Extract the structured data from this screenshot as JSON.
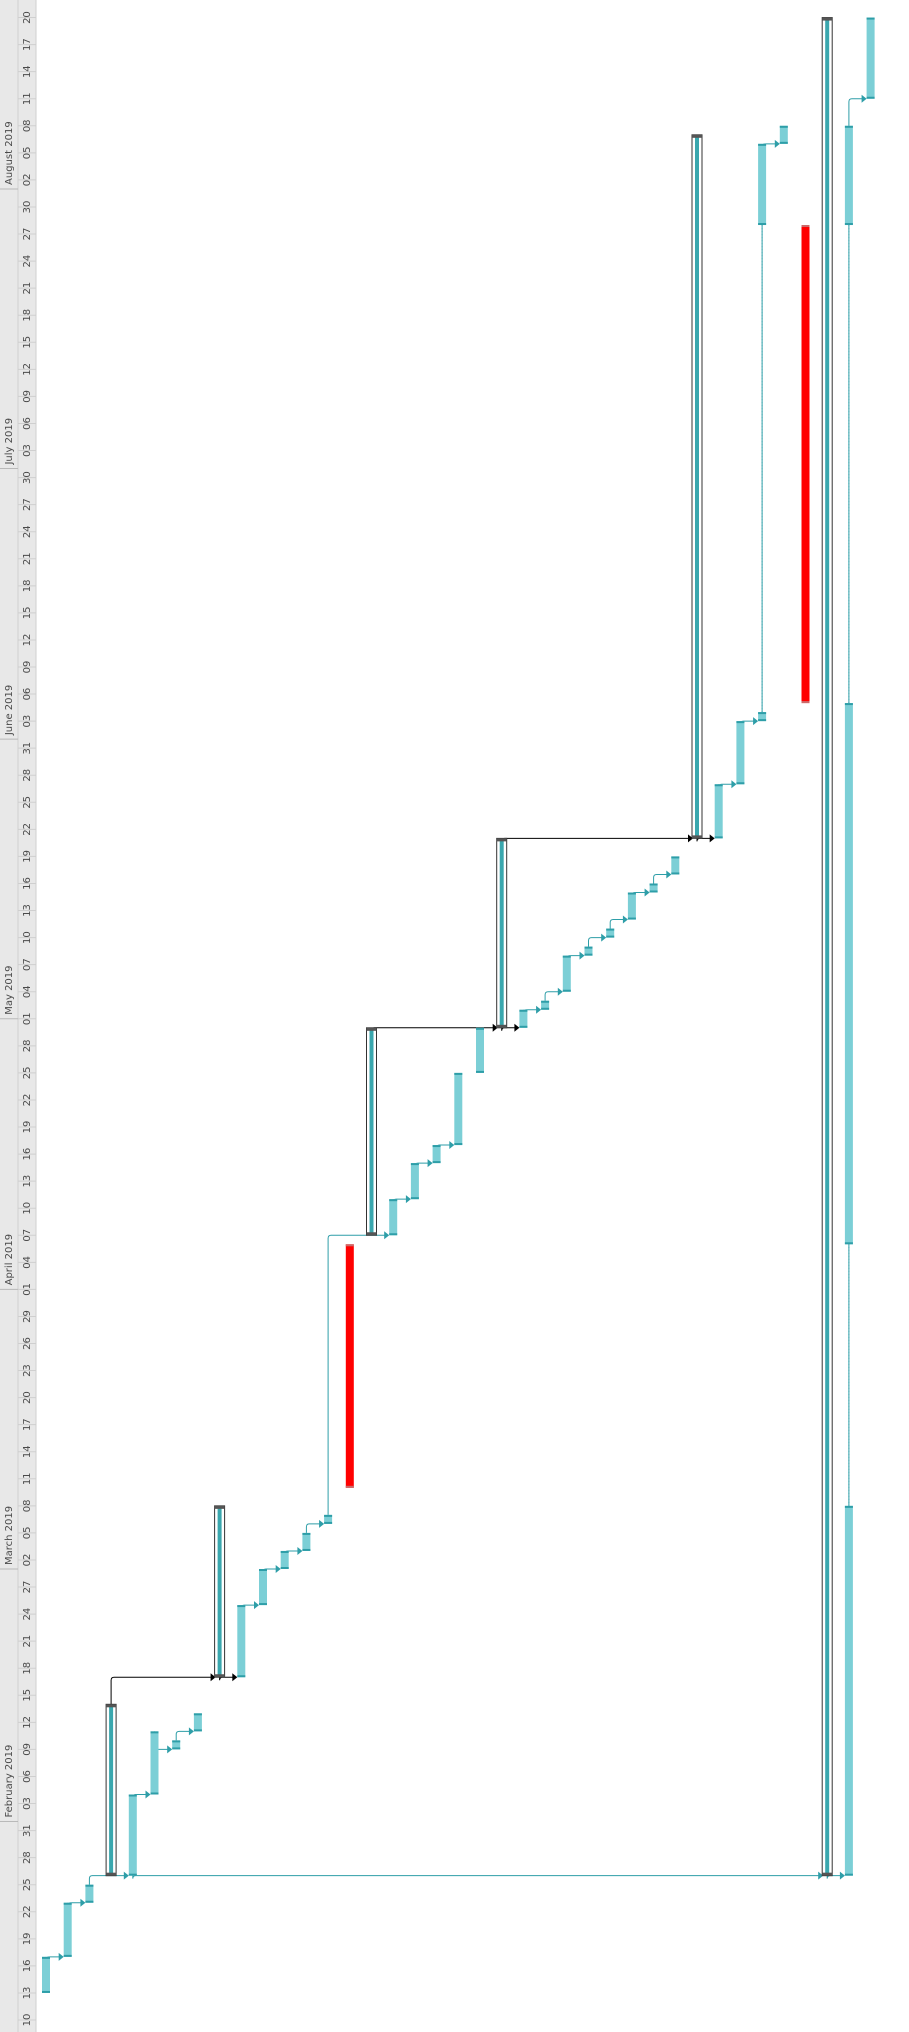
{
  "chart_data": {
    "type": "gantt",
    "orientation": "rotated-90",
    "date_axis": {
      "start": "2019-01-10",
      "end": "2019-08-21",
      "tick_labels": [
        {
          "date": "2019-01-10",
          "label": "10"
        },
        {
          "date": "2019-01-13",
          "label": "13"
        },
        {
          "date": "2019-01-16",
          "label": "16"
        },
        {
          "date": "2019-01-19",
          "label": "19"
        },
        {
          "date": "2019-01-22",
          "label": "22"
        },
        {
          "date": "2019-01-25",
          "label": "25"
        },
        {
          "date": "2019-01-28",
          "label": "28"
        },
        {
          "date": "2019-01-31",
          "label": "31"
        },
        {
          "date": "2019-02-03",
          "label": "03"
        },
        {
          "date": "2019-02-06",
          "label": "06"
        },
        {
          "date": "2019-02-09",
          "label": "09"
        },
        {
          "date": "2019-02-12",
          "label": "12"
        },
        {
          "date": "2019-02-15",
          "label": "15"
        },
        {
          "date": "2019-02-18",
          "label": "18"
        },
        {
          "date": "2019-02-21",
          "label": "21"
        },
        {
          "date": "2019-02-24",
          "label": "24"
        },
        {
          "date": "2019-02-27",
          "label": "27"
        },
        {
          "date": "2019-03-02",
          "label": "02"
        },
        {
          "date": "2019-03-05",
          "label": "05"
        },
        {
          "date": "2019-03-08",
          "label": "08"
        },
        {
          "date": "2019-03-11",
          "label": "11"
        },
        {
          "date": "2019-03-14",
          "label": "14"
        },
        {
          "date": "2019-03-17",
          "label": "17"
        },
        {
          "date": "2019-03-20",
          "label": "20"
        },
        {
          "date": "2019-03-23",
          "label": "23"
        },
        {
          "date": "2019-03-26",
          "label": "26"
        },
        {
          "date": "2019-03-29",
          "label": "29"
        },
        {
          "date": "2019-04-01",
          "label": "01"
        },
        {
          "date": "2019-04-04",
          "label": "04"
        },
        {
          "date": "2019-04-07",
          "label": "07"
        },
        {
          "date": "2019-04-10",
          "label": "10"
        },
        {
          "date": "2019-04-13",
          "label": "13"
        },
        {
          "date": "2019-04-16",
          "label": "16"
        },
        {
          "date": "2019-04-19",
          "label": "19"
        },
        {
          "date": "2019-04-22",
          "label": "22"
        },
        {
          "date": "2019-04-25",
          "label": "25"
        },
        {
          "date": "2019-04-28",
          "label": "28"
        },
        {
          "date": "2019-05-01",
          "label": "01"
        },
        {
          "date": "2019-05-04",
          "label": "04"
        },
        {
          "date": "2019-05-07",
          "label": "07"
        },
        {
          "date": "2019-05-10",
          "label": "10"
        },
        {
          "date": "2019-05-13",
          "label": "13"
        },
        {
          "date": "2019-05-16",
          "label": "16"
        },
        {
          "date": "2019-05-19",
          "label": "19"
        },
        {
          "date": "2019-05-22",
          "label": "22"
        },
        {
          "date": "2019-05-25",
          "label": "25"
        },
        {
          "date": "2019-05-28",
          "label": "28"
        },
        {
          "date": "2019-05-31",
          "label": "31"
        },
        {
          "date": "2019-06-03",
          "label": "03"
        },
        {
          "date": "2019-06-06",
          "label": "06"
        },
        {
          "date": "2019-06-09",
          "label": "09"
        },
        {
          "date": "2019-06-12",
          "label": "12"
        },
        {
          "date": "2019-06-15",
          "label": "15"
        },
        {
          "date": "2019-06-18",
          "label": "18"
        },
        {
          "date": "2019-06-21",
          "label": "21"
        },
        {
          "date": "2019-06-24",
          "label": "24"
        },
        {
          "date": "2019-06-27",
          "label": "27"
        },
        {
          "date": "2019-06-30",
          "label": "30"
        },
        {
          "date": "2019-07-03",
          "label": "03"
        },
        {
          "date": "2019-07-06",
          "label": "06"
        },
        {
          "date": "2019-07-09",
          "label": "09"
        },
        {
          "date": "2019-07-12",
          "label": "12"
        },
        {
          "date": "2019-07-15",
          "label": "15"
        },
        {
          "date": "2019-07-18",
          "label": "18"
        },
        {
          "date": "2019-07-21",
          "label": "21"
        },
        {
          "date": "2019-07-24",
          "label": "24"
        },
        {
          "date": "2019-07-27",
          "label": "27"
        },
        {
          "date": "2019-07-30",
          "label": "30"
        },
        {
          "date": "2019-08-02",
          "label": "02"
        },
        {
          "date": "2019-08-05",
          "label": "05"
        },
        {
          "date": "2019-08-08",
          "label": "08"
        },
        {
          "date": "2019-08-11",
          "label": "11"
        },
        {
          "date": "2019-08-14",
          "label": "14"
        },
        {
          "date": "2019-08-17",
          "label": "17"
        },
        {
          "date": "2019-08-20",
          "label": "20"
        }
      ],
      "month_labels": [
        {
          "date": "2019-02-01",
          "label": "February 2019"
        },
        {
          "date": "2019-03-01",
          "label": "March 2019"
        },
        {
          "date": "2019-04-01",
          "label": "April 2019"
        },
        {
          "date": "2019-05-01",
          "label": "May 2019"
        },
        {
          "date": "2019-06-01",
          "label": "June 2019"
        },
        {
          "date": "2019-07-01",
          "label": "July 2019"
        },
        {
          "date": "2019-08-01",
          "label": "August 2019"
        }
      ]
    },
    "tasks": [
      {
        "row": 0,
        "start": "2019-01-13",
        "end": "2019-01-17",
        "kind": "task"
      },
      {
        "row": 1,
        "start": "2019-01-17",
        "end": "2019-01-23",
        "kind": "task"
      },
      {
        "row": 2,
        "start": "2019-01-23",
        "end": "2019-01-25",
        "kind": "task"
      },
      {
        "row": 3,
        "start": "2019-01-26",
        "end": "2019-02-14",
        "kind": "summary"
      },
      {
        "row": 4,
        "start": "2019-01-26",
        "end": "2019-02-04",
        "kind": "task"
      },
      {
        "row": 5,
        "start": "2019-02-04",
        "end": "2019-02-11",
        "kind": "task"
      },
      {
        "row": 6,
        "start": "2019-02-09",
        "end": "2019-02-10",
        "kind": "task"
      },
      {
        "row": 7,
        "start": "2019-02-11",
        "end": "2019-02-13",
        "kind": "task"
      },
      {
        "row": 8,
        "start": "2019-02-17",
        "end": "2019-03-08",
        "kind": "summary"
      },
      {
        "row": 9,
        "start": "2019-02-17",
        "end": "2019-02-25",
        "kind": "task"
      },
      {
        "row": 10,
        "start": "2019-02-25",
        "end": "2019-02-29",
        "kind": "task"
      },
      {
        "row": 11,
        "start": "2019-03-01",
        "end": "2019-03-03",
        "kind": "task"
      },
      {
        "row": 12,
        "start": "2019-03-03",
        "end": "2019-03-05",
        "kind": "task"
      },
      {
        "row": 13,
        "start": "2019-03-06",
        "end": "2019-03-07",
        "kind": "task"
      },
      {
        "row": 14,
        "start": "2019-03-10",
        "end": "2019-04-06",
        "kind": "critical"
      },
      {
        "row": 15,
        "start": "2019-04-07",
        "end": "2019-04-30",
        "kind": "summary"
      },
      {
        "row": 16,
        "start": "2019-04-07",
        "end": "2019-04-11",
        "kind": "task"
      },
      {
        "row": 17,
        "start": "2019-04-11",
        "end": "2019-04-15",
        "kind": "task"
      },
      {
        "row": 18,
        "start": "2019-04-15",
        "end": "2019-04-17",
        "kind": "task"
      },
      {
        "row": 19,
        "start": "2019-04-17",
        "end": "2019-04-25",
        "kind": "task"
      },
      {
        "row": 20,
        "start": "2019-04-25",
        "end": "2019-04-30",
        "kind": "task"
      },
      {
        "row": 21,
        "start": "2019-04-30",
        "end": "2019-05-21",
        "kind": "summary"
      },
      {
        "row": 22,
        "start": "2019-04-30",
        "end": "2019-05-02",
        "kind": "task"
      },
      {
        "row": 23,
        "start": "2019-05-02",
        "end": "2019-05-03",
        "kind": "task"
      },
      {
        "row": 24,
        "start": "2019-05-04",
        "end": "2019-05-08",
        "kind": "task"
      },
      {
        "row": 25,
        "start": "2019-05-08",
        "end": "2019-05-09",
        "kind": "task"
      },
      {
        "row": 26,
        "start": "2019-05-10",
        "end": "2019-05-11",
        "kind": "task"
      },
      {
        "row": 27,
        "start": "2019-05-12",
        "end": "2019-05-15",
        "kind": "task"
      },
      {
        "row": 28,
        "start": "2019-05-15",
        "end": "2019-05-16",
        "kind": "task"
      },
      {
        "row": 29,
        "start": "2019-05-17",
        "end": "2019-05-19",
        "kind": "task"
      },
      {
        "row": 30,
        "start": "2019-05-21",
        "end": "2019-08-07",
        "kind": "summary"
      },
      {
        "row": 31,
        "start": "2019-05-21",
        "end": "2019-05-27",
        "kind": "task"
      },
      {
        "row": 32,
        "start": "2019-05-27",
        "end": "2019-06-03",
        "kind": "task"
      },
      {
        "row": 33,
        "start": "2019-06-03",
        "end": "2019-06-04",
        "kind": "task",
        "dotted_to": "2019-07-28"
      },
      {
        "row": 33,
        "start": "2019-07-28",
        "end": "2019-08-06",
        "kind": "task"
      },
      {
        "row": 34,
        "start": "2019-08-06",
        "end": "2019-08-08",
        "kind": "task"
      },
      {
        "row": 35,
        "start": "2019-06-05",
        "end": "2019-07-28",
        "kind": "critical"
      },
      {
        "row": 36,
        "start": "2019-01-26",
        "end": "2019-08-20",
        "kind": "summary"
      },
      {
        "row": 37,
        "start": "2019-01-26",
        "end": "2019-03-08",
        "kind": "task",
        "dotted_to": "2019-04-06"
      },
      {
        "row": 37,
        "start": "2019-04-06",
        "end": "2019-06-05",
        "kind": "task",
        "dotted_to": "2019-07-28"
      },
      {
        "row": 37,
        "start": "2019-07-28",
        "end": "2019-08-08",
        "kind": "task"
      },
      {
        "row": 38,
        "start": "2019-08-11",
        "end": "2019-08-20",
        "kind": "task"
      }
    ],
    "links": [
      {
        "from_row": 0,
        "to_row": 1
      },
      {
        "from_row": 1,
        "to_row": 2
      },
      {
        "from_row": 2,
        "to_row": 4
      },
      {
        "from_row": 4,
        "to_row": 5
      },
      {
        "from_row": 5,
        "to_row": 6
      },
      {
        "from_row": 6,
        "to_row": 7
      },
      {
        "from_row": 3,
        "to_row": 8,
        "style": "summary"
      },
      {
        "from_row": 8,
        "to_row": 9,
        "style": "summary"
      },
      {
        "from_row": 9,
        "to_row": 10
      },
      {
        "from_row": 10,
        "to_row": 11
      },
      {
        "from_row": 11,
        "to_row": 12
      },
      {
        "from_row": 12,
        "to_row": 13
      },
      {
        "from_row": 13,
        "to_row": 16
      },
      {
        "from_row": 16,
        "to_row": 17
      },
      {
        "from_row": 17,
        "to_row": 18
      },
      {
        "from_row": 18,
        "to_row": 19
      },
      {
        "from_row": 15,
        "to_row": 21,
        "style": "summary"
      },
      {
        "from_row": 21,
        "to_row": 22,
        "style": "summary"
      },
      {
        "from_row": 22,
        "to_row": 23
      },
      {
        "from_row": 23,
        "to_row": 24
      },
      {
        "from_row": 24,
        "to_row": 25
      },
      {
        "from_row": 25,
        "to_row": 26
      },
      {
        "from_row": 26,
        "to_row": 27
      },
      {
        "from_row": 27,
        "to_row": 28
      },
      {
        "from_row": 28,
        "to_row": 29
      },
      {
        "from_row": 21,
        "to_row": 30,
        "style": "summary"
      },
      {
        "from_row": 30,
        "to_row": 31,
        "style": "summary"
      },
      {
        "from_row": 31,
        "to_row": 32
      },
      {
        "from_row": 32,
        "to_row": 33
      },
      {
        "from_row": 33,
        "to_row": 34
      },
      {
        "from_row": 4,
        "to_row": 36
      },
      {
        "from_row": 36,
        "to_row": 37
      },
      {
        "from_row": 37,
        "to_row": 38
      }
    ],
    "colors": {
      "task": "#7ccfd6",
      "task_edge": "#2e9ea8",
      "summary_fill": "#3aa7ae",
      "summary_frame": "#333333",
      "critical": "#ff0000",
      "link": "#2e9ea8",
      "summary_link": "#000000",
      "header_bg": "#e8e8e8",
      "grid": "#e6e6e6"
    }
  }
}
